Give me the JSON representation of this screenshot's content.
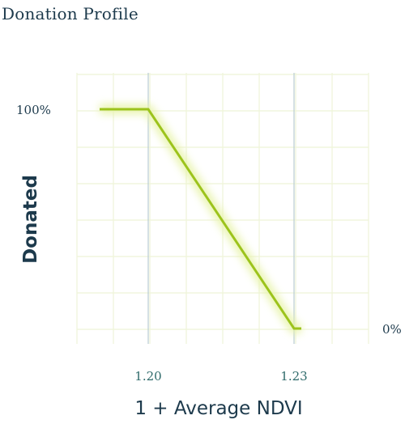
{
  "chart_data": {
    "type": "line",
    "title": "Donation Profile",
    "xlabel": "1 + Average NDVI",
    "ylabel": "Donated",
    "x": [
      1.19,
      1.2,
      1.23,
      1.2315
    ],
    "y": [
      100,
      100,
      0,
      0
    ],
    "x_ticks": [
      {
        "value": 1.2,
        "label": "1.20"
      },
      {
        "value": 1.23,
        "label": "1.23"
      }
    ],
    "y_labels": [
      {
        "value": 100,
        "label": "100%",
        "side": "left"
      },
      {
        "value": 0,
        "label": "0%",
        "side": "right"
      }
    ],
    "grid": true,
    "colors": {
      "line": "#9cc31c",
      "glow": "#e6f3a6",
      "grid": "#eef4d8",
      "reference_lines": "#b9ccd1",
      "text": "#1d3a4c",
      "tick_text": "#2e6a6a"
    }
  }
}
